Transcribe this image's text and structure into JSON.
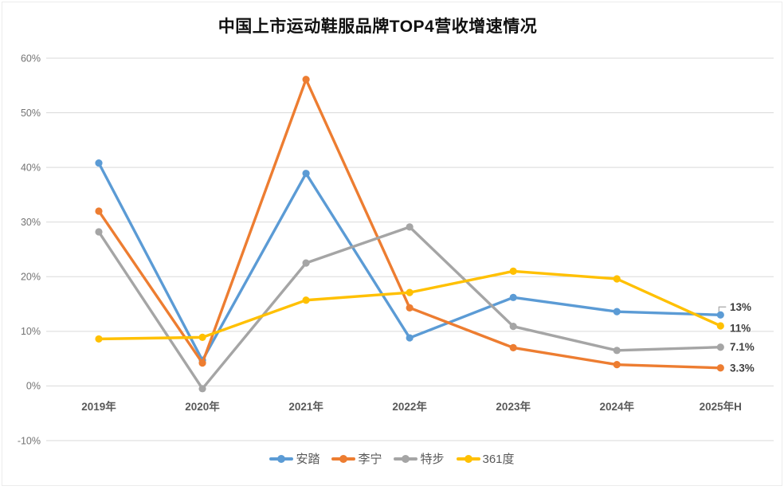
{
  "title": "中国上市运动鞋服品牌TOP4营收增速情况",
  "chart_data": {
    "type": "line",
    "title": "中国上市运动鞋服品牌TOP4营收增速情况",
    "categories": [
      "2019年",
      "2020年",
      "2021年",
      "2022年",
      "2023年",
      "2024年",
      "2025年H"
    ],
    "series": [
      {
        "id": "anta",
        "name": "安踏",
        "color": "#5B9BD5",
        "values": [
          40.8,
          4.7,
          38.9,
          8.8,
          16.2,
          13.6,
          13.0
        ],
        "end_label": "13%",
        "callout": true
      },
      {
        "id": "lining",
        "name": "李宁",
        "color": "#ED7D31",
        "values": [
          32.0,
          4.2,
          56.1,
          14.3,
          7.0,
          3.9,
          3.3
        ],
        "end_label": "3.3%",
        "callout": false
      },
      {
        "id": "xtep",
        "name": "特步",
        "color": "#A5A5A5",
        "values": [
          28.2,
          -0.5,
          22.5,
          29.1,
          10.9,
          6.5,
          7.1
        ],
        "end_label": "7.1%",
        "callout": false
      },
      {
        "id": "361du",
        "name": "361度",
        "color": "#FFC000",
        "values": [
          8.6,
          8.9,
          15.7,
          17.1,
          21.0,
          19.6,
          11.0
        ],
        "end_label": "11%",
        "callout": false
      }
    ],
    "y_axis": {
      "ticks": [
        "60%",
        "50%",
        "40%",
        "30%",
        "20%",
        "10%",
        "0%",
        "-10%"
      ],
      "values": [
        60,
        50,
        40,
        30,
        20,
        10,
        0,
        -10
      ],
      "range": [
        -10,
        60
      ]
    },
    "xlabel": "",
    "ylabel": "",
    "grid": true,
    "legend_position": "bottom",
    "colors": {
      "grid": "#d9d9d9",
      "y_tick_text": "#737373",
      "x_tick_text": "#595959",
      "data_label_text": "#404040",
      "callout_line": "#a6a6a6",
      "legend_text": "#595959",
      "title_text": "#111111"
    }
  }
}
